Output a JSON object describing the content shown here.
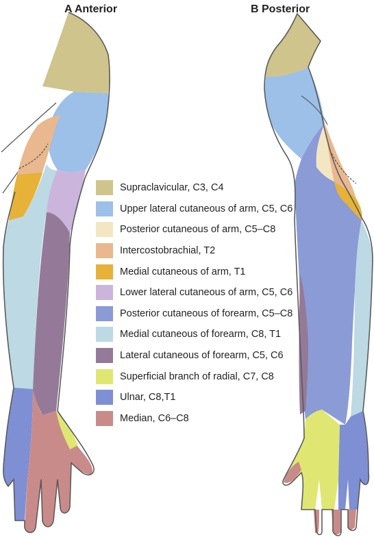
{
  "titles": {
    "anterior": "A  Anterior",
    "posterior": "B  Posterior"
  },
  "colors": {
    "outline": "#5a5a5a",
    "supraclavicular": "#cfc48c",
    "upper_lateral": "#9cc0e8",
    "posterior_arm": "#f3e6c2",
    "intercostobrachial": "#e9b88e",
    "medial_arm": "#e6b237",
    "lower_lateral": "#cbb5dc",
    "posterior_forearm": "#8b9bd6",
    "medial_forearm": "#bcd9e4",
    "lateral_forearm": "#947a98",
    "superficial_radial": "#dfe772",
    "ulnar": "#7f8fd4",
    "median": "#c98b8a"
  },
  "legend": [
    {
      "label": "Supraclavicular, C3, C4",
      "color": "#cfc48c"
    },
    {
      "label": "Upper lateral cutaneous of arm, C5, C6",
      "color": "#9cc0e8"
    },
    {
      "label": "Posterior cutaneous of arm, C5–C8",
      "color": "#f3e6c2"
    },
    {
      "label": "Intercostobrachial, T2",
      "color": "#e9b88e"
    },
    {
      "label": "Medial cutaneous of arm, T1",
      "color": "#e6b237"
    },
    {
      "label": "Lower lateral cutaneous of arm, C5, C6",
      "color": "#cbb5dc"
    },
    {
      "label": "Posterior cutaneous of forearm, C5–C8",
      "color": "#8b9bd6"
    },
    {
      "label": "Medial cutaneous of forearm, C8, T1",
      "color": "#bcd9e4"
    },
    {
      "label": "Lateral cutaneous of forearm, C5, C6",
      "color": "#947a98"
    },
    {
      "label": "Superficial branch of radial, C7, C8",
      "color": "#dfe772"
    },
    {
      "label": "Ulnar, C8,T1",
      "color": "#7f8fd4"
    },
    {
      "label": "Median, C6–C8",
      "color": "#c98b8a"
    }
  ]
}
